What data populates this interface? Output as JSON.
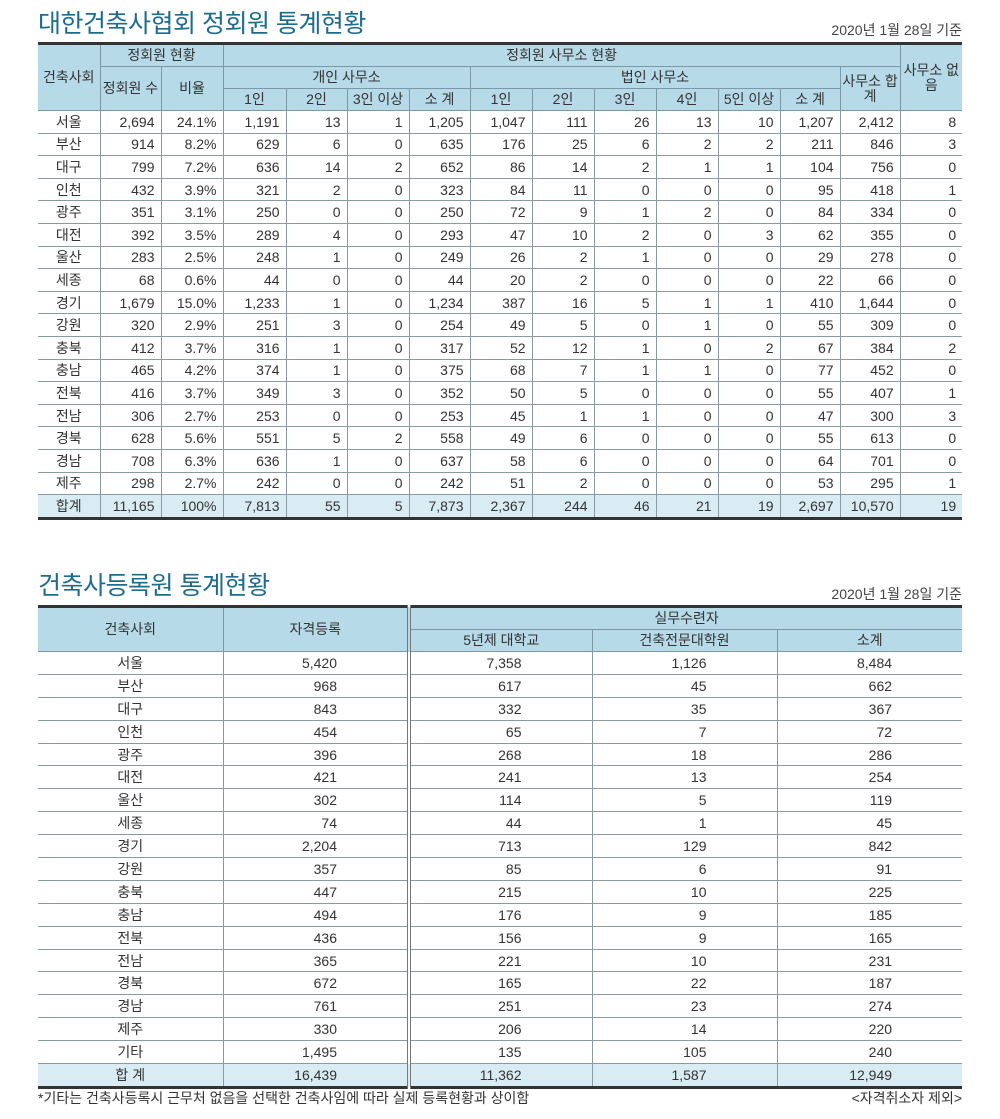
{
  "section1": {
    "title": "대한건축사협회 정회원 통계현황",
    "basis": "2020년 1월 28일 기준",
    "headers": {
      "region": "건축사회",
      "member_status": "정회원 현황",
      "member_count": "정회원 수",
      "ratio": "비율",
      "office_status": "정회원 사무소 현황",
      "individual": "개인 사무소",
      "corporate": "법인 사무소",
      "office_total": "사무소 합계",
      "no_office": "사무소 없음",
      "ind_cols": [
        "1인",
        "2인",
        "3인 이상",
        "소 계"
      ],
      "corp_cols": [
        "1인",
        "2인",
        "3인",
        "4인",
        "5인 이상",
        "소 계"
      ]
    },
    "rows": [
      [
        "서울",
        "2,694",
        "24.1%",
        "1,191",
        "13",
        "1",
        "1,205",
        "1,047",
        "111",
        "26",
        "13",
        "10",
        "1,207",
        "2,412",
        "8"
      ],
      [
        "부산",
        "914",
        "8.2%",
        "629",
        "6",
        "0",
        "635",
        "176",
        "25",
        "6",
        "2",
        "2",
        "211",
        "846",
        "3"
      ],
      [
        "대구",
        "799",
        "7.2%",
        "636",
        "14",
        "2",
        "652",
        "86",
        "14",
        "2",
        "1",
        "1",
        "104",
        "756",
        "0"
      ],
      [
        "인천",
        "432",
        "3.9%",
        "321",
        "2",
        "0",
        "323",
        "84",
        "11",
        "0",
        "0",
        "0",
        "95",
        "418",
        "1"
      ],
      [
        "광주",
        "351",
        "3.1%",
        "250",
        "0",
        "0",
        "250",
        "72",
        "9",
        "1",
        "2",
        "0",
        "84",
        "334",
        "0"
      ],
      [
        "대전",
        "392",
        "3.5%",
        "289",
        "4",
        "0",
        "293",
        "47",
        "10",
        "2",
        "0",
        "3",
        "62",
        "355",
        "0"
      ],
      [
        "울산",
        "283",
        "2.5%",
        "248",
        "1",
        "0",
        "249",
        "26",
        "2",
        "1",
        "0",
        "0",
        "29",
        "278",
        "0"
      ],
      [
        "세종",
        "68",
        "0.6%",
        "44",
        "0",
        "0",
        "44",
        "20",
        "2",
        "0",
        "0",
        "0",
        "22",
        "66",
        "0"
      ],
      [
        "경기",
        "1,679",
        "15.0%",
        "1,233",
        "1",
        "0",
        "1,234",
        "387",
        "16",
        "5",
        "1",
        "1",
        "410",
        "1,644",
        "0"
      ],
      [
        "강원",
        "320",
        "2.9%",
        "251",
        "3",
        "0",
        "254",
        "49",
        "5",
        "0",
        "1",
        "0",
        "55",
        "309",
        "0"
      ],
      [
        "충북",
        "412",
        "3.7%",
        "316",
        "1",
        "0",
        "317",
        "52",
        "12",
        "1",
        "0",
        "2",
        "67",
        "384",
        "2"
      ],
      [
        "충남",
        "465",
        "4.2%",
        "374",
        "1",
        "0",
        "375",
        "68",
        "7",
        "1",
        "1",
        "0",
        "77",
        "452",
        "0"
      ],
      [
        "전북",
        "416",
        "3.7%",
        "349",
        "3",
        "0",
        "352",
        "50",
        "5",
        "0",
        "0",
        "0",
        "55",
        "407",
        "1"
      ],
      [
        "전남",
        "306",
        "2.7%",
        "253",
        "0",
        "0",
        "253",
        "45",
        "1",
        "1",
        "0",
        "0",
        "47",
        "300",
        "3"
      ],
      [
        "경북",
        "628",
        "5.6%",
        "551",
        "5",
        "2",
        "558",
        "49",
        "6",
        "0",
        "0",
        "0",
        "55",
        "613",
        "0"
      ],
      [
        "경남",
        "708",
        "6.3%",
        "636",
        "1",
        "0",
        "637",
        "58",
        "6",
        "0",
        "0",
        "0",
        "64",
        "701",
        "0"
      ],
      [
        "제주",
        "298",
        "2.7%",
        "242",
        "0",
        "0",
        "242",
        "51",
        "2",
        "0",
        "0",
        "0",
        "53",
        "295",
        "1"
      ]
    ],
    "total": [
      "합계",
      "11,165",
      "100%",
      "7,813",
      "55",
      "5",
      "7,873",
      "2,367",
      "244",
      "46",
      "21",
      "19",
      "2,697",
      "10,570",
      "19"
    ]
  },
  "section2": {
    "title": "건축사등록원 통계현황",
    "basis": "2020년 1월 28일 기준",
    "headers": {
      "region": "건축사회",
      "registered": "자격등록",
      "trainees": "실무수련자",
      "cols": [
        "5년제 대학교",
        "건축전문대학원",
        "소계"
      ]
    },
    "rows": [
      [
        "서울",
        "5,420",
        "7,358",
        "1,126",
        "8,484"
      ],
      [
        "부산",
        "968",
        "617",
        "45",
        "662"
      ],
      [
        "대구",
        "843",
        "332",
        "35",
        "367"
      ],
      [
        "인천",
        "454",
        "65",
        "7",
        "72"
      ],
      [
        "광주",
        "396",
        "268",
        "18",
        "286"
      ],
      [
        "대전",
        "421",
        "241",
        "13",
        "254"
      ],
      [
        "울산",
        "302",
        "114",
        "5",
        "119"
      ],
      [
        "세종",
        "74",
        "44",
        "1",
        "45"
      ],
      [
        "경기",
        "2,204",
        "713",
        "129",
        "842"
      ],
      [
        "강원",
        "357",
        "85",
        "6",
        "91"
      ],
      [
        "충북",
        "447",
        "215",
        "10",
        "225"
      ],
      [
        "충남",
        "494",
        "176",
        "9",
        "185"
      ],
      [
        "전북",
        "436",
        "156",
        "9",
        "165"
      ],
      [
        "전남",
        "365",
        "221",
        "10",
        "231"
      ],
      [
        "경북",
        "672",
        "165",
        "22",
        "187"
      ],
      [
        "경남",
        "761",
        "251",
        "23",
        "274"
      ],
      [
        "제주",
        "330",
        "206",
        "14",
        "220"
      ],
      [
        "기타",
        "1,495",
        "135",
        "105",
        "240"
      ]
    ],
    "total": [
      "합 계",
      "16,439",
      "11,362",
      "1,587",
      "12,949"
    ],
    "footnote": "*기타는 건축사등록시 근무처 없음을 선택한 건축사임에 따라 실제 등록현황과 상이함",
    "exclusion_note": "<자격취소자 제외>"
  }
}
